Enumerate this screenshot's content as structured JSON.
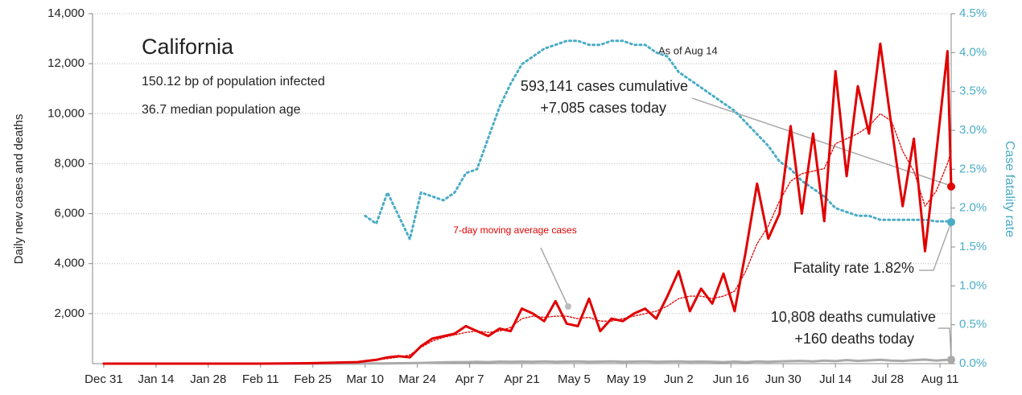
{
  "chart_data": {
    "type": "line",
    "title": "California",
    "subtitle": [
      "150.12 bp of population infected",
      "36.7 median population age"
    ],
    "annotations": {
      "as_of": "As of Aug 14",
      "cases_cumulative": "593,141 cases cumulative",
      "cases_today": "+7,085 cases today",
      "moving_average": "7-day moving average cases",
      "fatality": "Fatality rate 1.82%",
      "deaths_cumulative": "10,808 deaths cumulative",
      "deaths_today": "+160 deaths today"
    },
    "ylabel": "Daily new cases and deaths",
    "y2label": "Case fatality rate",
    "x": [
      0,
      14,
      28,
      42,
      56,
      68,
      70,
      73,
      76,
      79,
      82,
      85,
      88,
      91,
      94,
      97,
      100,
      103,
      106,
      109,
      112,
      115,
      118,
      121,
      124,
      127,
      130,
      133,
      136,
      139,
      142,
      145,
      148,
      151,
      154,
      157,
      160,
      163,
      166,
      169,
      172,
      175,
      178,
      181,
      184,
      187,
      190,
      193,
      196,
      199,
      202,
      205,
      208,
      211,
      214,
      217,
      220,
      223,
      226,
      227
    ],
    "xlim": [
      -3,
      227
    ],
    "xticks": [
      {
        "value": 0,
        "label": "Dec 31"
      },
      {
        "value": 14,
        "label": "Jan 14"
      },
      {
        "value": 28,
        "label": "Jan 28"
      },
      {
        "value": 42,
        "label": "Feb 11"
      },
      {
        "value": 56,
        "label": "Feb 25"
      },
      {
        "value": 70,
        "label": "Mar 10"
      },
      {
        "value": 84,
        "label": "Mar 24"
      },
      {
        "value": 98,
        "label": "Apr 7"
      },
      {
        "value": 112,
        "label": "Apr 21"
      },
      {
        "value": 126,
        "label": "May 5"
      },
      {
        "value": 140,
        "label": "May 19"
      },
      {
        "value": 154,
        "label": "Jun 2"
      },
      {
        "value": 168,
        "label": "Jun 16"
      },
      {
        "value": 182,
        "label": "Jun 30"
      },
      {
        "value": 196,
        "label": "Jul 14"
      },
      {
        "value": 210,
        "label": "Jul 28"
      },
      {
        "value": 224,
        "label": "Aug 11"
      }
    ],
    "ylim": [
      0,
      14000
    ],
    "yticks": [
      {
        "value": 2000,
        "label": "2,000"
      },
      {
        "value": 4000,
        "label": "4,000"
      },
      {
        "value": 6000,
        "label": "6,000"
      },
      {
        "value": 8000,
        "label": "8,000"
      },
      {
        "value": 10000,
        "label": "10,000"
      },
      {
        "value": 12000,
        "label": "12,000"
      },
      {
        "value": 14000,
        "label": "14,000"
      }
    ],
    "y2lim": [
      0,
      4.5
    ],
    "y2ticks": [
      {
        "value": 0,
        "label": "0.0%"
      },
      {
        "value": 0.5,
        "label": "0.5%"
      },
      {
        "value": 1,
        "label": "1.0%"
      },
      {
        "value": 1.5,
        "label": "1.5%"
      },
      {
        "value": 2,
        "label": "2.0%"
      },
      {
        "value": 2.5,
        "label": "2.5%"
      },
      {
        "value": 3,
        "label": "3.0%"
      },
      {
        "value": 3.5,
        "label": "3.5%"
      },
      {
        "value": 4,
        "label": "4.0%"
      },
      {
        "value": 4.5,
        "label": "4.5%"
      }
    ],
    "grid": true,
    "series": [
      {
        "color": "#4bacc6",
        "style": "dotted",
        "axis": "y2",
        "values": [
          null,
          null,
          null,
          null,
          null,
          null,
          1.9,
          1.8,
          2.2,
          1.9,
          1.6,
          2.2,
          2.15,
          2.1,
          2.2,
          2.45,
          2.5,
          2.9,
          3.3,
          3.6,
          3.85,
          3.95,
          4.05,
          4.1,
          4.15,
          4.15,
          4.1,
          4.1,
          4.15,
          4.15,
          4.1,
          4.1,
          4.0,
          3.95,
          3.75,
          3.65,
          3.55,
          3.45,
          3.35,
          3.25,
          3.1,
          2.95,
          2.8,
          2.6,
          2.5,
          2.35,
          2.25,
          2.15,
          2.0,
          1.95,
          1.9,
          1.9,
          1.85,
          1.85,
          1.85,
          1.85,
          1.85,
          1.83,
          1.83,
          1.82
        ]
      },
      {
        "color": "#aaaaaa",
        "style": "solid",
        "values": [
          0,
          0,
          0,
          0,
          0,
          0,
          2,
          5,
          10,
          15,
          20,
          30,
          40,
          50,
          60,
          60,
          70,
          60,
          80,
          70,
          80,
          70,
          90,
          70,
          80,
          90,
          70,
          80,
          90,
          70,
          80,
          90,
          70,
          80,
          90,
          70,
          80,
          70,
          60,
          80,
          60,
          90,
          70,
          90,
          100,
          110,
          90,
          120,
          100,
          140,
          110,
          130,
          150,
          120,
          110,
          140,
          160,
          120,
          150,
          160
        ]
      },
      {
        "color": "#e00000",
        "style": "dotted",
        "values": [
          0,
          0,
          0,
          0,
          10,
          40,
          80,
          150,
          200,
          260,
          350,
          650,
          900,
          1050,
          1150,
          1250,
          1300,
          1250,
          1300,
          1450,
          1800,
          1900,
          1850,
          1900,
          1900,
          1800,
          1850,
          1700,
          1700,
          1800,
          1900,
          2000,
          2100,
          2300,
          2600,
          2700,
          2700,
          2600,
          2700,
          2900,
          3700,
          4800,
          5500,
          6500,
          7300,
          7600,
          7700,
          7800,
          8800,
          9000,
          9200,
          9500,
          10000,
          9700,
          8500,
          7700,
          6300,
          6900,
          8000,
          8500
        ]
      },
      {
        "color": "#e00000",
        "style": "solid",
        "values": [
          0,
          0,
          0,
          0,
          20,
          60,
          100,
          150,
          250,
          300,
          250,
          700,
          1000,
          1100,
          1200,
          1500,
          1300,
          1100,
          1400,
          1300,
          2200,
          2000,
          1700,
          2500,
          1600,
          1500,
          2600,
          1300,
          1800,
          1700,
          2000,
          2200,
          1800,
          2700,
          3700,
          2100,
          3000,
          2400,
          3600,
          2100,
          4500,
          7200,
          5000,
          6000,
          9500,
          6000,
          9200,
          5700,
          11700,
          7500,
          11100,
          9200,
          12800,
          9500,
          6300,
          9000,
          4500,
          8400,
          12500,
          7085
        ]
      }
    ]
  }
}
